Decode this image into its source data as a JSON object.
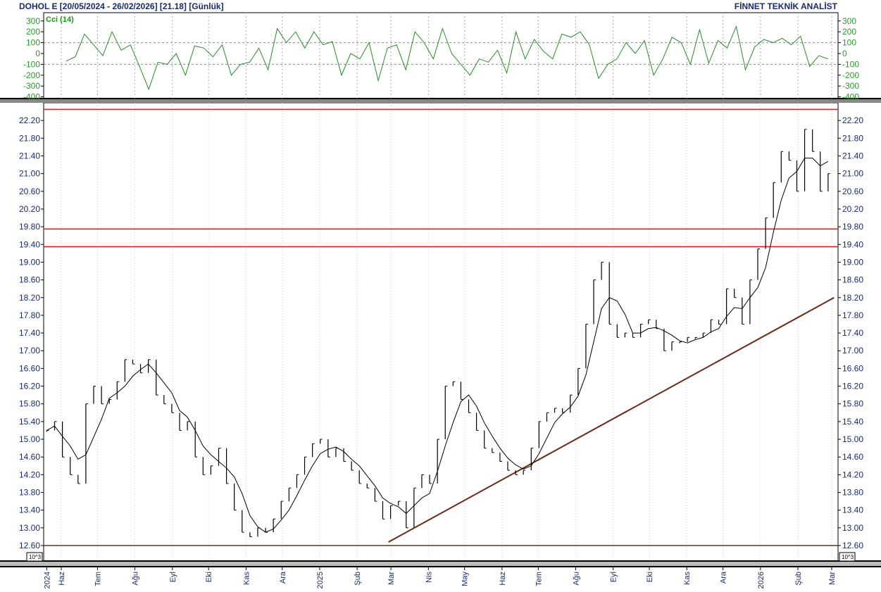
{
  "header": {
    "title": "DOHOL E  [20/05/2024 - 26/02/2026]  [21.18]  [Günlük]",
    "brand": "FİNNET TEKNİK ANALİST"
  },
  "chart_data": [
    {
      "type": "line",
      "title": "Cci (14)",
      "ylim": [
        -400,
        300
      ],
      "yticks": [
        300,
        200,
        100,
        0,
        -100,
        -200,
        -300,
        -400
      ],
      "reference_lines": [
        100,
        -100
      ],
      "color": "#2a8a2a",
      "x_range": [
        "2024-06-05",
        "2026-02-26"
      ],
      "values": [
        -70,
        -30,
        180,
        80,
        -20,
        200,
        30,
        80,
        -120,
        -330,
        -80,
        -100,
        0,
        -200,
        70,
        50,
        -30,
        80,
        -200,
        -100,
        -80,
        50,
        -150,
        230,
        100,
        200,
        50,
        200,
        80,
        110,
        -200,
        0,
        -50,
        100,
        -250,
        50,
        80,
        -150,
        200,
        100,
        -50,
        230,
        0,
        -100,
        -200,
        -50,
        -80,
        30,
        -180,
        200,
        -50,
        130,
        20,
        -50,
        180,
        150,
        200,
        80,
        -230,
        -100,
        -50,
        100,
        0,
        120,
        -200,
        -50,
        150,
        100,
        -100,
        220,
        -90,
        120,
        50,
        250,
        -150,
        60,
        130,
        100,
        140,
        80,
        160,
        -120,
        -20,
        -50
      ]
    },
    {
      "type": "bar",
      "series_name": "DOHOL E",
      "last": 21.18,
      "ylim": [
        12.2,
        22.5
      ],
      "yticks": [
        "22.20",
        "21.80",
        "21.40",
        "21.00",
        "20.60",
        "20.20",
        "19.80",
        "19.40",
        "19.00",
        "18.60",
        "18.20",
        "17.80",
        "17.40",
        "17.00",
        "16.60",
        "16.20",
        "15.80",
        "15.40",
        "15.00",
        "14.60",
        "14.20",
        "13.80",
        "13.40",
        "13.00",
        "12.60"
      ],
      "x_range": [
        "2024-05-20",
        "2026-02-26"
      ],
      "closes": [
        15.2,
        15.4,
        14.6,
        14.2,
        14.0,
        15.8,
        16.2,
        15.8,
        15.9,
        16.3,
        16.8,
        16.7,
        16.5,
        16.8,
        16.0,
        15.8,
        15.6,
        15.2,
        15.4,
        14.6,
        14.2,
        14.4,
        14.8,
        14.0,
        13.4,
        12.9,
        12.8,
        13.0,
        12.9,
        13.2,
        13.6,
        13.9,
        14.2,
        14.6,
        14.9,
        15.0,
        14.6,
        14.8,
        14.5,
        14.3,
        14.0,
        13.9,
        13.6,
        13.2,
        13.5,
        13.6,
        13.0,
        13.9,
        14.2,
        14.0,
        15.0,
        16.2,
        16.3,
        15.9,
        15.6,
        15.2,
        14.8,
        14.7,
        14.5,
        14.3,
        14.2,
        14.3,
        14.8,
        15.4,
        15.6,
        15.7,
        15.6,
        16.0,
        16.6,
        17.6,
        18.6,
        19.0,
        17.6,
        17.3,
        17.4,
        17.3,
        17.6,
        17.7,
        17.5,
        17.0,
        17.2,
        17.2,
        17.3,
        17.3,
        17.4,
        17.7,
        17.6,
        18.4,
        18.2,
        17.6,
        18.6,
        19.3,
        20.0,
        20.8,
        21.5,
        21.3,
        20.6,
        22.0,
        21.5,
        20.6,
        21.0
      ],
      "horizontal_levels": [
        {
          "value": 22.45,
          "color": "#e02020"
        },
        {
          "value": 19.75,
          "color": "#e02020"
        },
        {
          "value": 19.35,
          "color": "#e02020"
        },
        {
          "value": 12.6,
          "color": "#5a3a1a"
        }
      ],
      "trendline": {
        "from": {
          "date": "2025-02-27",
          "value": 12.68
        },
        "to": {
          "date": "2026-03-03",
          "value": 18.2
        },
        "color": "#6a2a1a"
      },
      "scale_label": "10^3"
    }
  ],
  "x_axis": {
    "ticks": [
      {
        "date": "2024-05-20",
        "label": "2024"
      },
      {
        "date": "2024-06-01",
        "label": "Haz"
      },
      {
        "date": "2024-07-01",
        "label": "Tem"
      },
      {
        "date": "2024-08-01",
        "label": "Ağu"
      },
      {
        "date": "2024-09-01",
        "label": "Eyl"
      },
      {
        "date": "2024-10-01",
        "label": "Eki"
      },
      {
        "date": "2024-11-01",
        "label": "Kas"
      },
      {
        "date": "2024-12-01",
        "label": "Ara"
      },
      {
        "date": "2025-01-01",
        "label": "2025"
      },
      {
        "date": "2025-02-01",
        "label": "Şub"
      },
      {
        "date": "2025-03-01",
        "label": "Mar"
      },
      {
        "date": "2025-04-01",
        "label": "Nis"
      },
      {
        "date": "2025-05-01",
        "label": "May"
      },
      {
        "date": "2025-06-01",
        "label": "Haz"
      },
      {
        "date": "2025-07-01",
        "label": "Tem"
      },
      {
        "date": "2025-08-01",
        "label": "Ağu"
      },
      {
        "date": "2025-09-01",
        "label": "Eyl"
      },
      {
        "date": "2025-10-01",
        "label": "Eki"
      },
      {
        "date": "2025-11-01",
        "label": "Kas"
      },
      {
        "date": "2025-12-01",
        "label": "Ara"
      },
      {
        "date": "2026-01-01",
        "label": "2026"
      },
      {
        "date": "2026-02-01",
        "label": "Şub"
      },
      {
        "date": "2026-03-01",
        "label": "Mar"
      }
    ]
  }
}
